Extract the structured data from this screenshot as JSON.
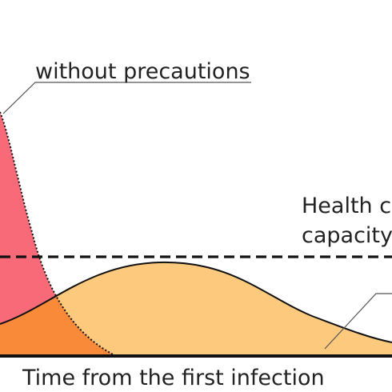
{
  "labels": {
    "without_precautions": "without precautions",
    "health_capacity_line1": "Health ca",
    "health_capacity_line2": "capacity",
    "x_axis": "Time from the first infection"
  },
  "colors": {
    "peak_fill": "#f86a78",
    "peak_overlap_fill": "#f98a3a",
    "flat_fill": "#fdc97c",
    "stroke": "#111111",
    "leader_line": "#555555"
  },
  "icons": {
    "peak_curve": "steep-red-peak",
    "flat_curve": "flattened-orange-curve",
    "capacity_line": "dashed-horizontal-line"
  }
}
